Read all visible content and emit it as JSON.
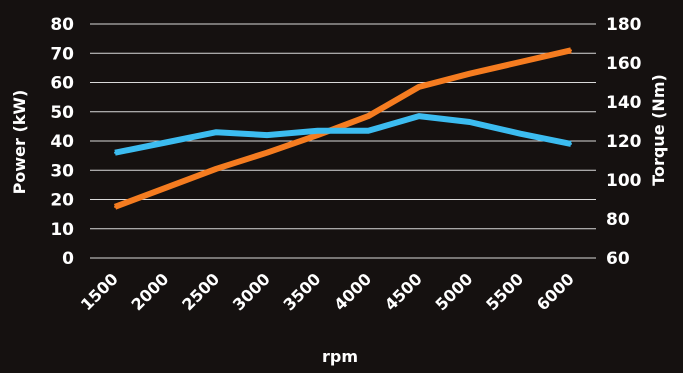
{
  "chart_data": {
    "type": "line",
    "title": "",
    "xlabel": "rpm",
    "ylabel_left": "Power (kW)",
    "ylabel_right": "Torque (Nm)",
    "categories": [
      "1500",
      "2000",
      "2500",
      "3000",
      "3500",
      "4000",
      "4500",
      "5000",
      "5500",
      "6000"
    ],
    "ylim_left": [
      0,
      80
    ],
    "yticks_left": [
      0,
      10,
      20,
      30,
      40,
      50,
      60,
      70,
      80
    ],
    "ylim_right": [
      60,
      180
    ],
    "yticks_right": [
      60,
      80,
      100,
      120,
      140,
      160,
      180
    ],
    "grid": true,
    "series": [
      {
        "axis": "left",
        "color": "#f57c20",
        "values": [
          17.5,
          24,
          30.5,
          36,
          42,
          48.5,
          58.5,
          63,
          67,
          71
        ]
      },
      {
        "axis": "left",
        "color": "#3cbcf0",
        "values": [
          36,
          39.5,
          43,
          42,
          43.5,
          43.5,
          48.5,
          46.5,
          42.5,
          39
        ]
      }
    ]
  }
}
